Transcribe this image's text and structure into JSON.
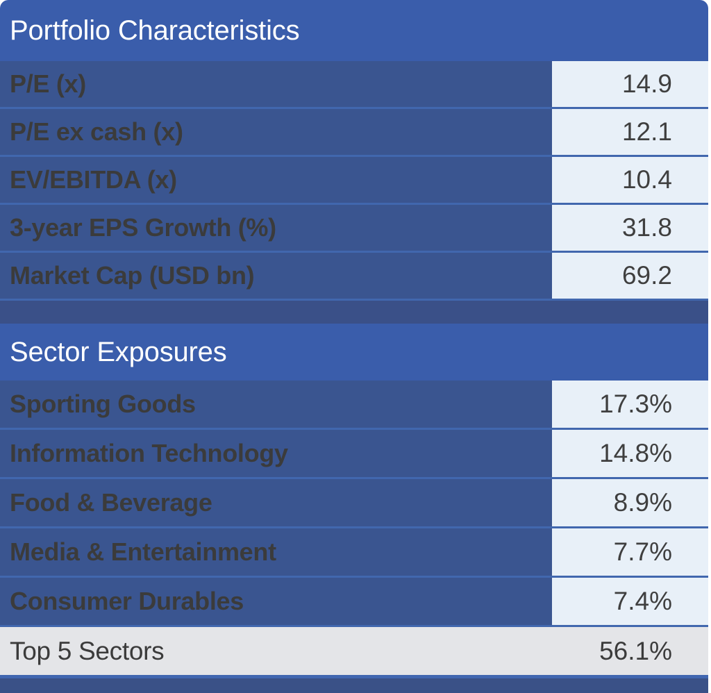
{
  "portfolio": {
    "title": "Portfolio Characteristics",
    "rows": [
      {
        "label": "P/E (x)",
        "value": "14.9"
      },
      {
        "label": "P/E ex cash (x)",
        "value": "12.1"
      },
      {
        "label": "EV/EBITDA (x)",
        "value": "10.4"
      },
      {
        "label": "3-year EPS Growth (%)",
        "value": "31.8"
      },
      {
        "label": "Market Cap (USD bn)",
        "value": "69.2"
      }
    ]
  },
  "sectors": {
    "title": "Sector Exposures",
    "rows": [
      {
        "label": "Sporting Goods",
        "value": "17.3%"
      },
      {
        "label": "Information Technology",
        "value": "14.8%"
      },
      {
        "label": "Food & Beverage",
        "value": "8.9%"
      },
      {
        "label": "Media & Entertainment",
        "value": "7.7%"
      },
      {
        "label": "Consumer Durables",
        "value": "7.4%"
      }
    ],
    "total": {
      "label": "Top 5 Sectors",
      "value": "56.1%"
    }
  },
  "colors": {
    "header_blue": "#3a5dab",
    "row_navy": "#3a5590",
    "value_cell_light": "#e8f0f8",
    "separator_blue": "#4167ae",
    "spacer_band_navy": "#3a5088",
    "total_row_gray": "#e4e5e8",
    "footer_navy": "#3a5187",
    "label_text": "#3b3b3b",
    "value_text": "#3f3f3f",
    "header_text": "#ffffff"
  }
}
